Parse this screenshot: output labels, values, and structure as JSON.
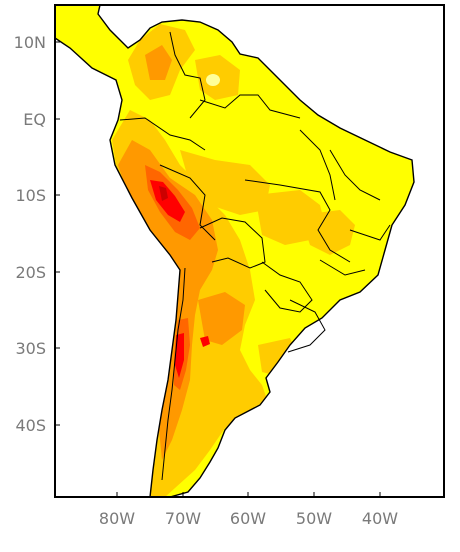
{
  "map": {
    "colors": {
      "ocean": "#ffffff",
      "land_base": "#ffff00",
      "light": "#ffff99",
      "medium": "#ffcc00",
      "high": "#ff9900",
      "higher": "#ff6600",
      "highest": "#ff0000",
      "peak": "#cc0000",
      "frame": "#000000",
      "border": "#000000",
      "label": "#7a7a7a"
    },
    "lat_labels": [
      "10N",
      "EQ",
      "10S",
      "20S",
      "30S",
      "40S"
    ],
    "lon_labels": [
      "80W",
      "70W",
      "60W",
      "50W",
      "40W"
    ]
  }
}
